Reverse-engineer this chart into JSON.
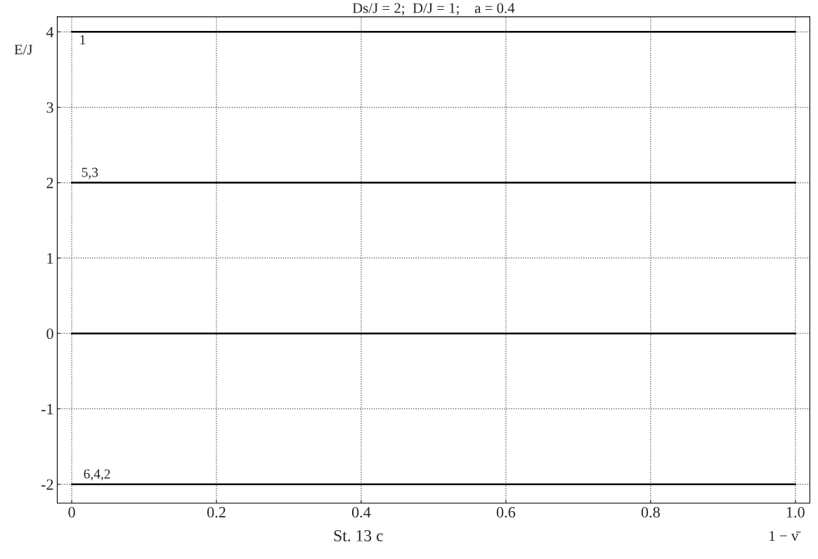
{
  "chart_data": {
    "type": "line",
    "title": "Ds/J = 2;  D/J = 1;    a = 0.4",
    "xlabel": "1 − v̄",
    "ylabel": "E/J",
    "x": [
      0,
      1
    ],
    "series": [
      {
        "color": "#000000",
        "values": [
          4,
          4
        ]
      },
      {
        "color": "#000000",
        "values": [
          2,
          2
        ]
      },
      {
        "color": "#000000",
        "values": [
          0,
          0
        ]
      },
      {
        "color": "#000000",
        "values": [
          -2,
          -2
        ]
      }
    ],
    "xlim": [
      -0.02,
      1.02
    ],
    "ylim": [
      -2.25,
      4.2
    ],
    "xticks": [
      {
        "value": 0,
        "label": "0"
      },
      0.2,
      0.4,
      0.6,
      0.8,
      {
        "value": 1,
        "label": "1.0"
      }
    ],
    "yticks": [
      -2,
      -1,
      0,
      1,
      2,
      3,
      4
    ],
    "grid": true,
    "line_style": "solid",
    "annotations": [
      {
        "text": "1",
        "x": 0.015,
        "y": 4
      },
      {
        "text": "5,3",
        "x": 0.025,
        "y": 2
      },
      {
        "text": "6,4,2",
        "x": 0.035,
        "y": -2
      },
      "St. 13 c"
    ]
  }
}
